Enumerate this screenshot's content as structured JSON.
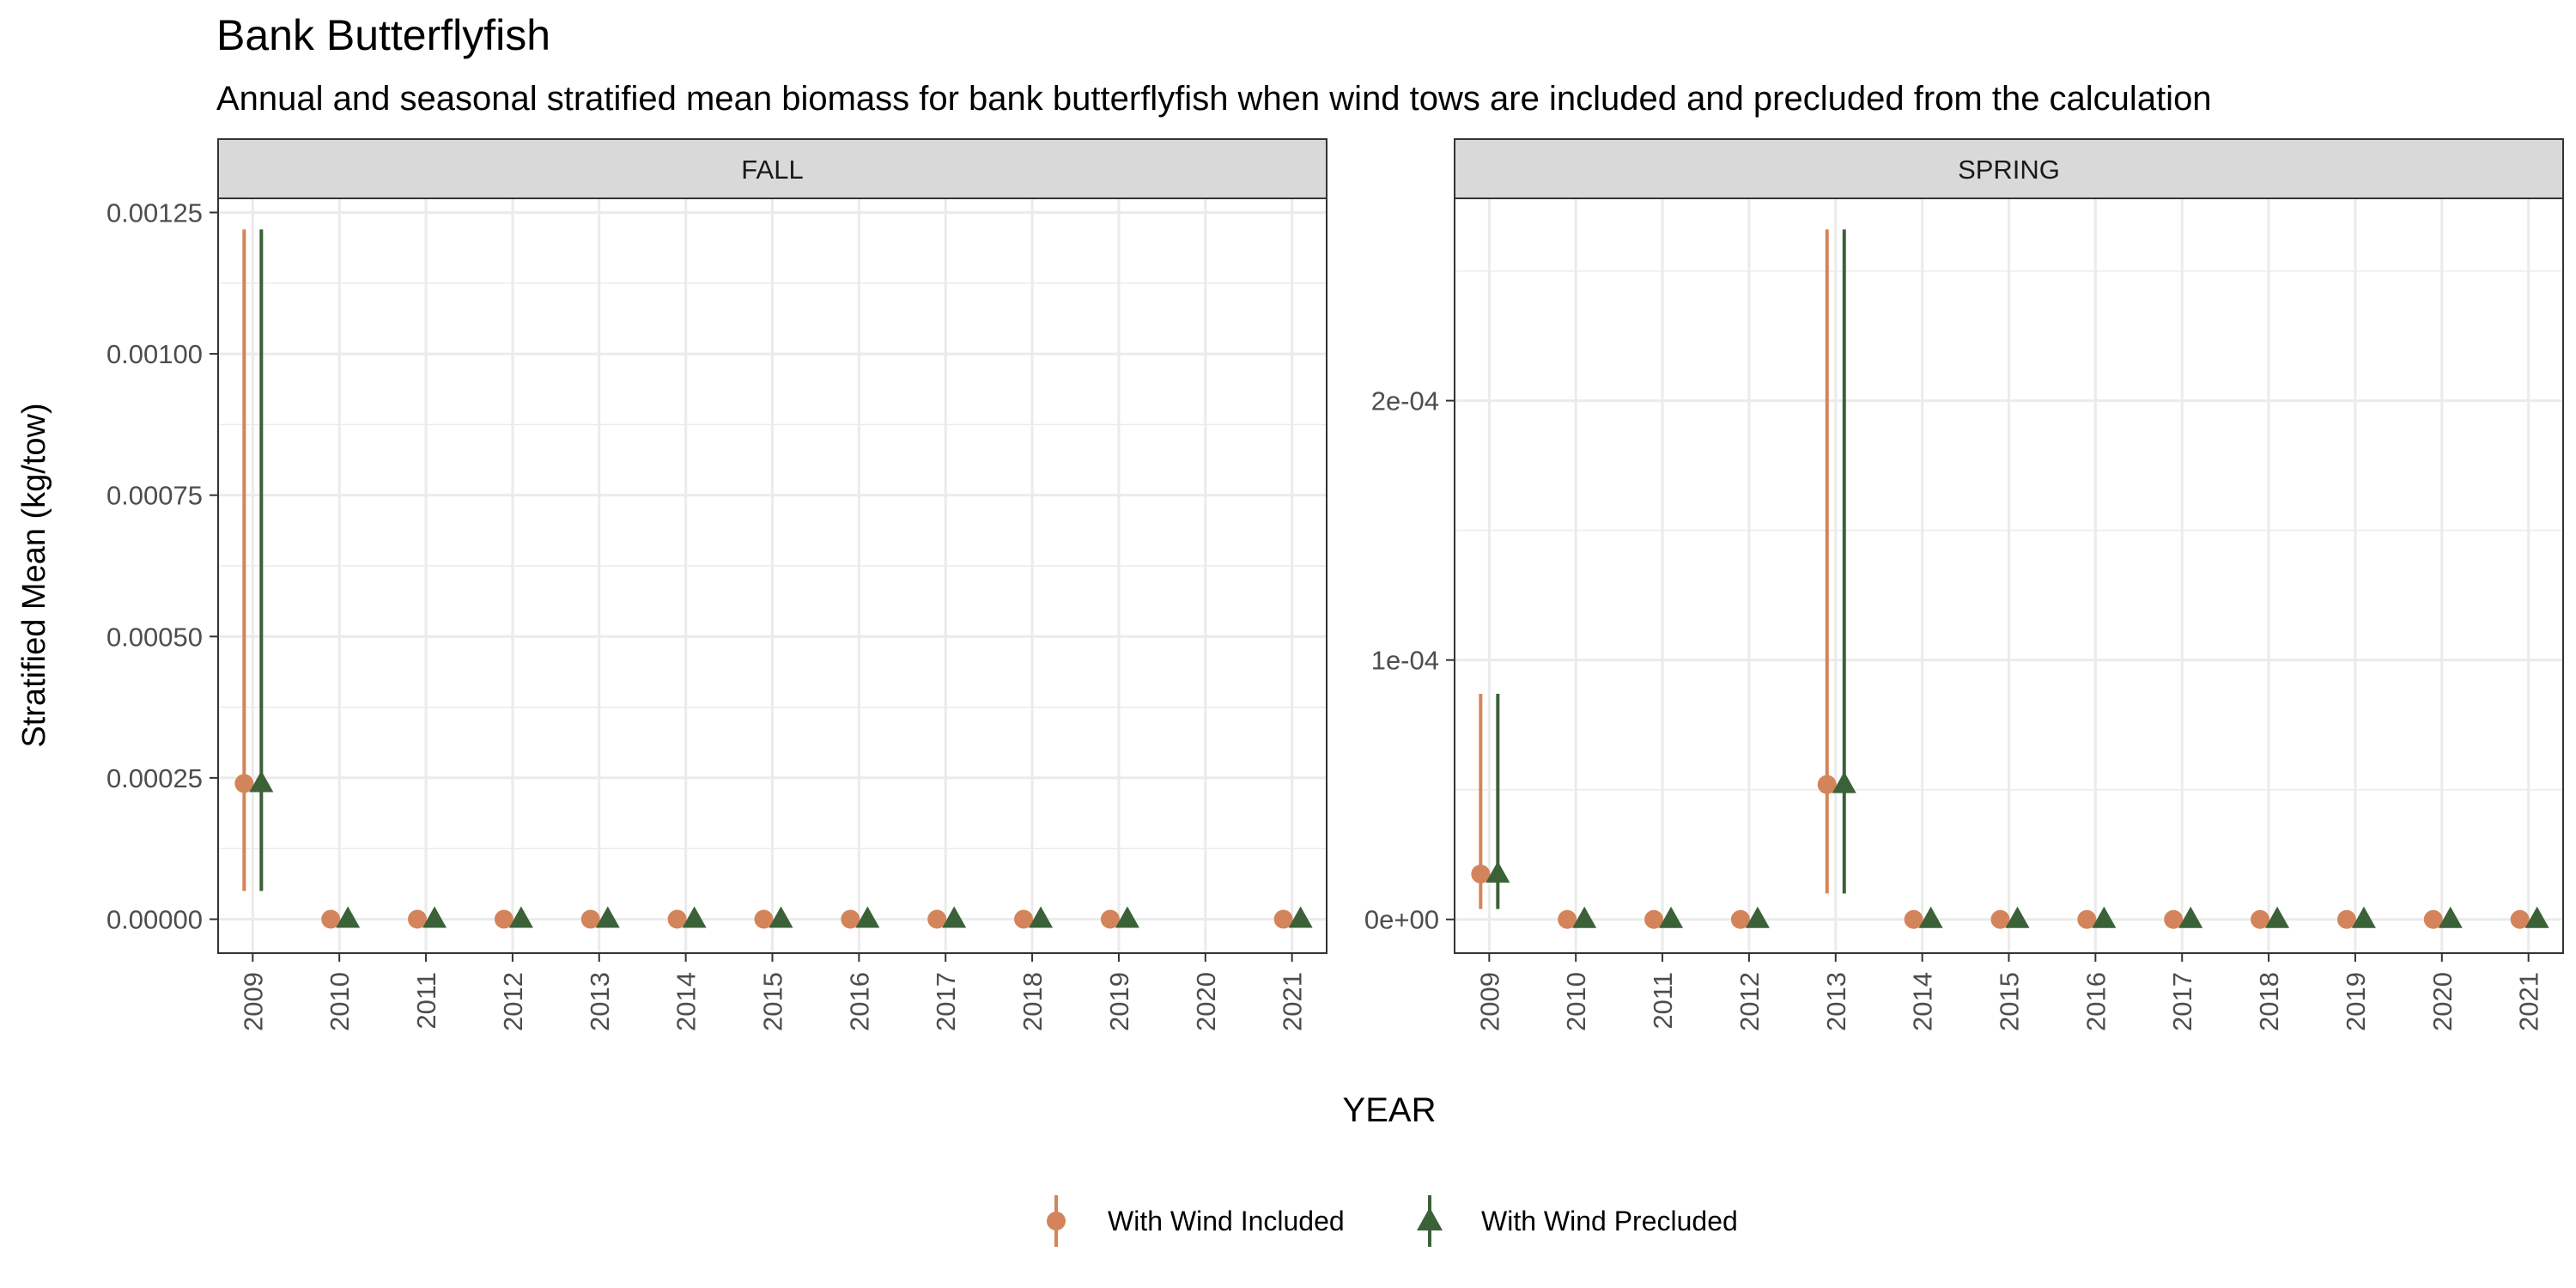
{
  "title": "Bank Butterflyfish",
  "subtitle": "Annual and seasonal stratified mean biomass for bank butterflyfish when wind tows are included and precluded from the calculation",
  "xlabel": "YEAR",
  "ylabel": "Stratified Mean (kg/tow)",
  "colors": {
    "included": "#D4845A",
    "precluded": "#3B6138",
    "strip": "#D9D9D9",
    "grid": "#EBEBEB"
  },
  "legend": {
    "position": "bottom",
    "items": [
      {
        "key": "included",
        "label": "With Wind Included",
        "shape": "circle"
      },
      {
        "key": "precluded",
        "label": "With Wind Precluded",
        "shape": "triangle"
      }
    ]
  },
  "chart_data": [
    {
      "type": "scatter",
      "panel": "FALL",
      "x_ticks": [
        "2009",
        "2010",
        "2011",
        "2012",
        "2013",
        "2014",
        "2015",
        "2016",
        "2017",
        "2018",
        "2019",
        "2020",
        "2021"
      ],
      "xlim": [
        2008.6,
        2021.4
      ],
      "ylim": [
        -6e-05,
        0.001275
      ],
      "y_ticks": [
        0,
        0.00025,
        0.0005,
        0.00075,
        0.001,
        0.00125
      ],
      "y_tick_labels": [
        "0.00000",
        "0.00025",
        "0.00050",
        "0.00075",
        "0.00100",
        "0.00125"
      ],
      "grid": true,
      "series": [
        {
          "name": "With Wind Included",
          "key": "included",
          "points": [
            {
              "x": 2009,
              "y": 0.00024,
              "lo": 5e-05,
              "hi": 0.00122
            },
            {
              "x": 2010,
              "y": 0
            },
            {
              "x": 2011,
              "y": 0
            },
            {
              "x": 2012,
              "y": 0
            },
            {
              "x": 2013,
              "y": 0
            },
            {
              "x": 2014,
              "y": 0
            },
            {
              "x": 2015,
              "y": 0
            },
            {
              "x": 2016,
              "y": 0
            },
            {
              "x": 2017,
              "y": 0
            },
            {
              "x": 2018,
              "y": 0
            },
            {
              "x": 2019,
              "y": 0
            },
            {
              "x": 2021,
              "y": 0
            }
          ]
        },
        {
          "name": "With Wind Precluded",
          "key": "precluded",
          "points": [
            {
              "x": 2009,
              "y": 0.00024,
              "lo": 5e-05,
              "hi": 0.00122
            },
            {
              "x": 2010,
              "y": 0
            },
            {
              "x": 2011,
              "y": 0
            },
            {
              "x": 2012,
              "y": 0
            },
            {
              "x": 2013,
              "y": 0
            },
            {
              "x": 2014,
              "y": 0
            },
            {
              "x": 2015,
              "y": 0
            },
            {
              "x": 2016,
              "y": 0
            },
            {
              "x": 2017,
              "y": 0
            },
            {
              "x": 2018,
              "y": 0
            },
            {
              "x": 2019,
              "y": 0
            },
            {
              "x": 2021,
              "y": 0
            }
          ]
        }
      ]
    },
    {
      "type": "scatter",
      "panel": "SPRING",
      "x_ticks": [
        "2009",
        "2010",
        "2011",
        "2012",
        "2013",
        "2014",
        "2015",
        "2016",
        "2017",
        "2018",
        "2019",
        "2020",
        "2021"
      ],
      "xlim": [
        2008.6,
        2021.4
      ],
      "ylim": [
        -1.3e-05,
        0.000278
      ],
      "y_ticks": [
        0,
        0.0001,
        0.0002
      ],
      "y_tick_labels": [
        "0e+00",
        "1e-04",
        "2e-04"
      ],
      "grid": true,
      "series": [
        {
          "name": "With Wind Included",
          "key": "included",
          "points": [
            {
              "x": 2009,
              "y": 1.75e-05,
              "lo": 4e-06,
              "hi": 8.7e-05
            },
            {
              "x": 2010,
              "y": 0
            },
            {
              "x": 2011,
              "y": 0
            },
            {
              "x": 2012,
              "y": 0
            },
            {
              "x": 2013,
              "y": 5.2e-05,
              "lo": 1e-05,
              "hi": 0.000266
            },
            {
              "x": 2014,
              "y": 0
            },
            {
              "x": 2015,
              "y": 0
            },
            {
              "x": 2016,
              "y": 0
            },
            {
              "x": 2017,
              "y": 0
            },
            {
              "x": 2018,
              "y": 0
            },
            {
              "x": 2019,
              "y": 0
            },
            {
              "x": 2020,
              "y": 0
            },
            {
              "x": 2021,
              "y": 0
            }
          ]
        },
        {
          "name": "With Wind Precluded",
          "key": "precluded",
          "points": [
            {
              "x": 2009,
              "y": 1.75e-05,
              "lo": 4e-06,
              "hi": 8.7e-05
            },
            {
              "x": 2010,
              "y": 0
            },
            {
              "x": 2011,
              "y": 0
            },
            {
              "x": 2012,
              "y": 0
            },
            {
              "x": 2013,
              "y": 5.2e-05,
              "lo": 1e-05,
              "hi": 0.000266
            },
            {
              "x": 2014,
              "y": 0
            },
            {
              "x": 2015,
              "y": 0
            },
            {
              "x": 2016,
              "y": 0
            },
            {
              "x": 2017,
              "y": 0
            },
            {
              "x": 2018,
              "y": 0
            },
            {
              "x": 2019,
              "y": 0
            },
            {
              "x": 2020,
              "y": 0
            },
            {
              "x": 2021,
              "y": 0
            }
          ]
        }
      ]
    }
  ]
}
